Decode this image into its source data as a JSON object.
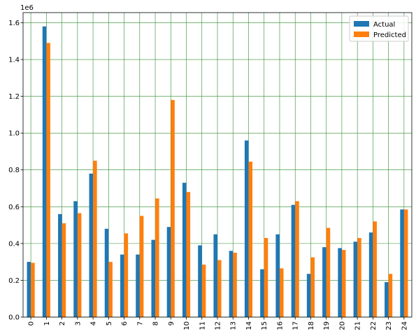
{
  "chart_data": {
    "type": "bar",
    "title": "",
    "xlabel": "",
    "ylabel": "",
    "scale_label": "1e6",
    "categories": [
      "0",
      "1",
      "2",
      "3",
      "4",
      "5",
      "6",
      "7",
      "8",
      "9",
      "10",
      "11",
      "12",
      "13",
      "14",
      "15",
      "16",
      "17",
      "18",
      "19",
      "20",
      "21",
      "22",
      "23",
      "24"
    ],
    "series": [
      {
        "name": "Actual",
        "color": "#1f77b4",
        "values": [
          0.3,
          1.58,
          0.56,
          0.63,
          0.78,
          0.48,
          0.34,
          0.34,
          0.42,
          0.49,
          0.73,
          0.39,
          0.45,
          0.36,
          0.96,
          0.26,
          0.45,
          0.61,
          0.235,
          0.38,
          0.375,
          0.41,
          0.46,
          0.19,
          0.585
        ]
      },
      {
        "name": "Predicted",
        "color": "#ff7f0e",
        "values": [
          0.295,
          1.49,
          0.51,
          0.565,
          0.85,
          0.3,
          0.455,
          0.55,
          0.645,
          1.18,
          0.68,
          0.285,
          0.31,
          0.35,
          0.845,
          0.43,
          0.265,
          0.63,
          0.325,
          0.485,
          0.365,
          0.43,
          0.52,
          0.235,
          0.585
        ]
      }
    ],
    "ylim": [
      0,
      1.655
    ],
    "yticks": [
      0.0,
      0.2,
      0.4,
      0.6,
      0.8,
      1.0,
      1.2,
      1.4,
      1.6
    ],
    "ytick_labels": [
      "0.0",
      "0.2",
      "0.4",
      "0.6",
      "0.8",
      "1.0",
      "1.2",
      "1.4",
      "1.6"
    ],
    "grid": true,
    "grid_color": "#2e8b2e",
    "legend_position": "top-right"
  }
}
